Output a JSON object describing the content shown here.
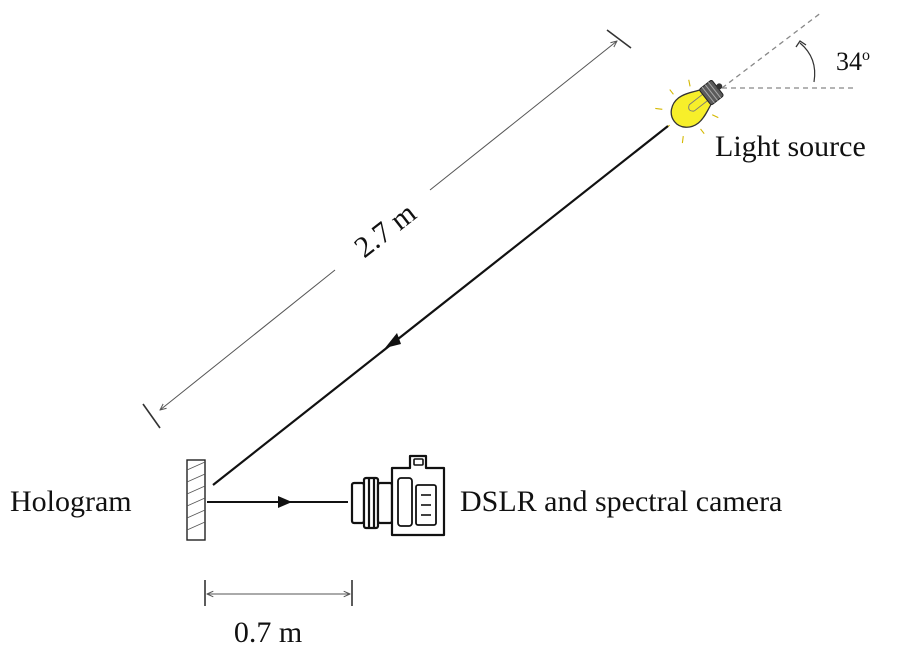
{
  "labels": {
    "light_source": "Light source",
    "hologram": "Hologram",
    "camera": "DSLR and spectral camera",
    "distance_long": "2.7 m",
    "distance_short": "0.7 m",
    "angle_value": "34",
    "angle_unit": "o"
  },
  "colors": {
    "line": "#111111",
    "dim_line": "#555555",
    "dash": "#888888",
    "bulb_fill": "#f7ef2a",
    "bulb_base": "#5b5b5b"
  },
  "icons": {
    "light_source": "light-bulb-icon",
    "camera": "camera-icon",
    "hologram": "hologram-plate"
  }
}
